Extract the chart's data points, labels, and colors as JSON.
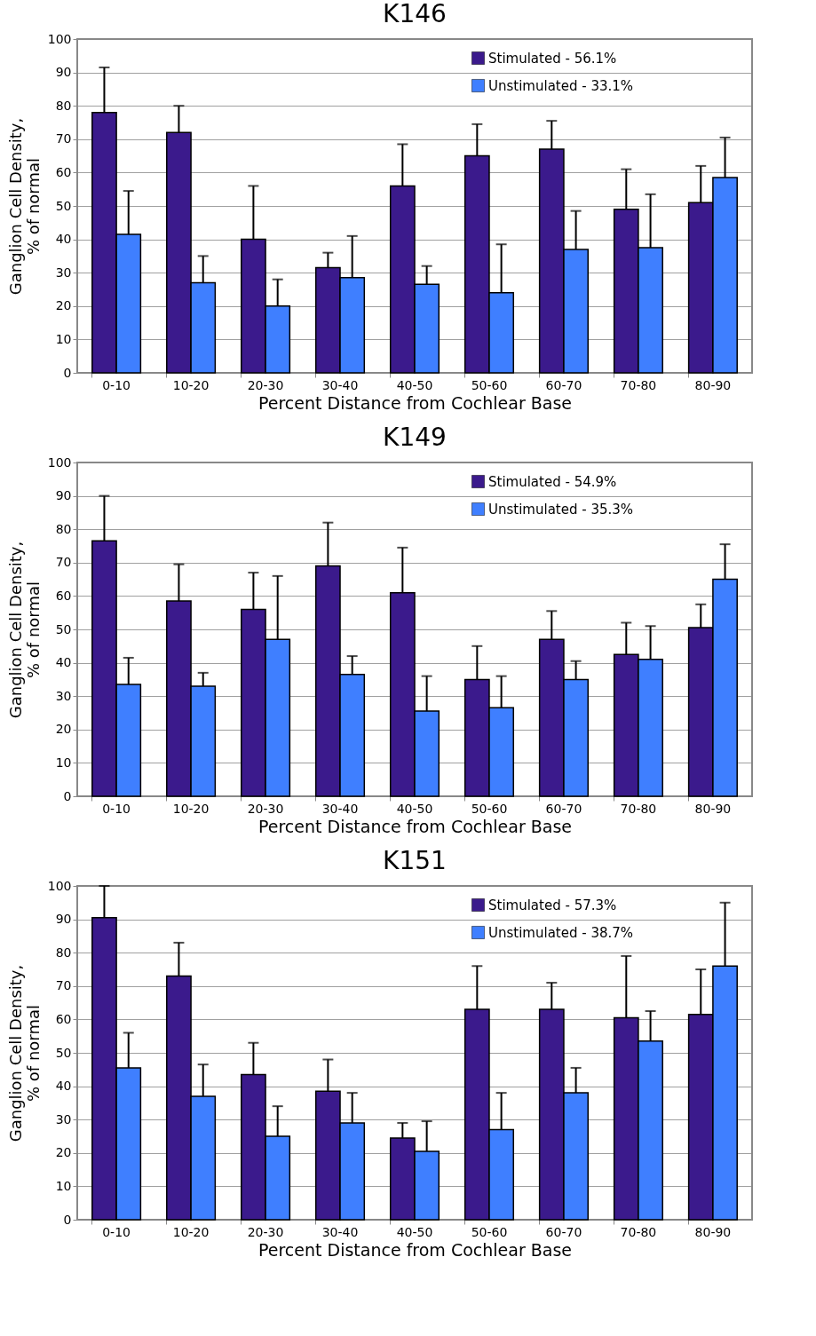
{
  "chart_data": [
    {
      "type": "bar",
      "title": "K146",
      "xlabel": "Percent Distance from Cochlear Base",
      "ylabel": "Ganglion Cell Density,\n% of normal",
      "categories": [
        "0-10",
        "10-20",
        "20-30",
        "30-40",
        "40-50",
        "50-60",
        "60-70",
        "70-80",
        "80-90"
      ],
      "ylim": [
        0,
        100
      ],
      "yticks": [
        0,
        10,
        20,
        30,
        40,
        50,
        60,
        70,
        80,
        90,
        100
      ],
      "grid": "y",
      "legend": "top right",
      "series": [
        {
          "name": "Stimulated - 56.1%",
          "color": "#3b1a8c",
          "values": [
            78,
            72,
            40,
            31.5,
            56,
            65,
            67,
            49,
            51
          ],
          "errors": [
            [
              78,
              91.5
            ],
            [
              72,
              80
            ],
            [
              40,
              56
            ],
            [
              31.5,
              36
            ],
            [
              56,
              68.5
            ],
            [
              65,
              74.5
            ],
            [
              67,
              75.5
            ],
            [
              49,
              61
            ],
            [
              51,
              62
            ]
          ]
        },
        {
          "name": "Unstimulated - 33.1%",
          "color": "#3f7fff",
          "values": [
            41.5,
            27,
            20,
            28.5,
            26.5,
            24,
            37,
            37.5,
            58.5
          ],
          "errors": [
            [
              41.5,
              54.5
            ],
            [
              27,
              35
            ],
            [
              20,
              28
            ],
            [
              28.5,
              41
            ],
            [
              26.5,
              32
            ],
            [
              24,
              38.5
            ],
            [
              37,
              48.5
            ],
            [
              37.5,
              53.5
            ],
            [
              58.5,
              70.5
            ]
          ]
        }
      ]
    },
    {
      "type": "bar",
      "title": "K149",
      "xlabel": "Percent Distance from Cochlear Base",
      "ylabel": "Ganglion Cell Density,\n% of normal",
      "categories": [
        "0-10",
        "10-20",
        "20-30",
        "30-40",
        "40-50",
        "50-60",
        "60-70",
        "70-80",
        "80-90"
      ],
      "ylim": [
        0,
        100
      ],
      "yticks": [
        0,
        10,
        20,
        30,
        40,
        50,
        60,
        70,
        80,
        90,
        100
      ],
      "grid": "y",
      "legend": "top right",
      "series": [
        {
          "name": "Stimulated - 54.9%",
          "color": "#3b1a8c",
          "values": [
            76.5,
            58.5,
            56,
            69,
            61,
            35,
            47,
            42.5,
            50.5
          ],
          "errors": [
            [
              76.5,
              90
            ],
            [
              58.5,
              69.5
            ],
            [
              56,
              67
            ],
            [
              69,
              82
            ],
            [
              61,
              74.5
            ],
            [
              35,
              45
            ],
            [
              47,
              55.5
            ],
            [
              42.5,
              52
            ],
            [
              50.5,
              57.5
            ]
          ]
        },
        {
          "name": "Unstimulated - 35.3%",
          "color": "#3f7fff",
          "values": [
            33.5,
            33,
            47,
            36.5,
            25.5,
            26.5,
            35,
            41,
            65
          ],
          "errors": [
            [
              33.5,
              41.5
            ],
            [
              33,
              37
            ],
            [
              47,
              66
            ],
            [
              36.5,
              42
            ],
            [
              25.5,
              36
            ],
            [
              26.5,
              36
            ],
            [
              35,
              40.5
            ],
            [
              41,
              51
            ],
            [
              65,
              75.5
            ]
          ]
        }
      ]
    },
    {
      "type": "bar",
      "title": "K151",
      "xlabel": "Percent Distance from Cochlear Base",
      "ylabel": "Ganglion Cell Density,\n% of normal",
      "categories": [
        "0-10",
        "10-20",
        "20-30",
        "30-40",
        "40-50",
        "50-60",
        "60-70",
        "70-80",
        "80-90"
      ],
      "ylim": [
        0,
        100
      ],
      "yticks": [
        0,
        10,
        20,
        30,
        40,
        50,
        60,
        70,
        80,
        90,
        100
      ],
      "grid": "y",
      "legend": "top right",
      "series": [
        {
          "name": "Stimulated - 57.3%",
          "color": "#3b1a8c",
          "values": [
            90.5,
            73,
            43.5,
            38.5,
            24.5,
            63,
            63,
            60.5,
            61.5
          ],
          "errors": [
            [
              90.5,
              100
            ],
            [
              73,
              83
            ],
            [
              43.5,
              53
            ],
            [
              38.5,
              48
            ],
            [
              24.5,
              29
            ],
            [
              63,
              76
            ],
            [
              63,
              71
            ],
            [
              60.5,
              79
            ],
            [
              61.5,
              75
            ]
          ]
        },
        {
          "name": "Unstimulated - 38.7%",
          "color": "#3f7fff",
          "values": [
            45.5,
            37,
            25,
            29,
            20.5,
            27,
            38,
            53.5,
            76
          ],
          "errors": [
            [
              45.5,
              56
            ],
            [
              37,
              46.5
            ],
            [
              25,
              34
            ],
            [
              29,
              38
            ],
            [
              20.5,
              29.5
            ],
            [
              27,
              38
            ],
            [
              38,
              45.5
            ],
            [
              53.5,
              62.5
            ],
            [
              76,
              95
            ]
          ]
        }
      ]
    }
  ]
}
